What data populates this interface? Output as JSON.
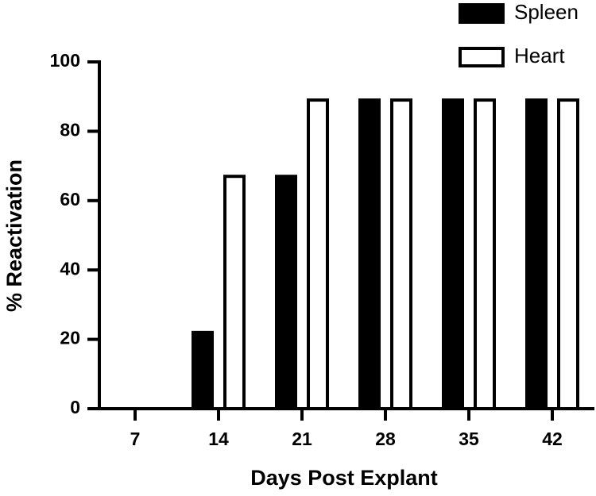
{
  "chart_data": {
    "type": "bar",
    "x_label": "Days Post Explant",
    "y_label": "% Reactivation",
    "categories": [
      "7",
      "14",
      "21",
      "28",
      "35",
      "42"
    ],
    "series": [
      {
        "name": "Spleen",
        "color": "#000000",
        "values": [
          0,
          22,
          67,
          89,
          89,
          89
        ]
      },
      {
        "name": "Heart",
        "color": "#ffffff",
        "values": [
          0,
          67,
          89,
          89,
          89,
          89
        ]
      }
    ],
    "ylim": [
      0,
      100
    ],
    "yticks": [
      0,
      20,
      40,
      60,
      80,
      100
    ]
  }
}
